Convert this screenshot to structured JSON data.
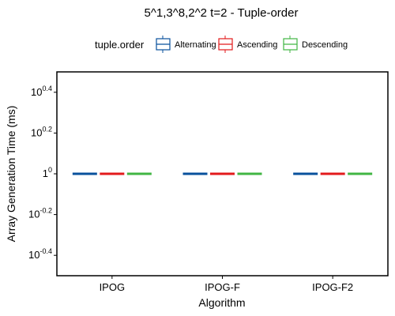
{
  "chart_data": {
    "type": "box",
    "title": "5^1,3^8,2^2 t=2 - Tuple-order",
    "xlabel": "Algorithm",
    "ylabel": "Array Generation Time (ms)",
    "y_scale": "log10",
    "ylim_log10": [
      -0.5,
      0.5
    ],
    "y_ticks": [
      {
        "base": "10",
        "exp": "-0.4",
        "value": -0.4
      },
      {
        "base": "10",
        "exp": "-0.2",
        "value": -0.2
      },
      {
        "base": "1",
        "exp": "0",
        "value": 0
      },
      {
        "base": "10",
        "exp": "0.2",
        "value": 0.2
      },
      {
        "base": "10",
        "exp": "0.4",
        "value": 0.4
      }
    ],
    "categories": [
      "IPOG",
      "IPOG-F",
      "IPOG-F2"
    ],
    "legend": {
      "title": "tuple.order",
      "position": "top"
    },
    "grid": false,
    "series": [
      {
        "name": "Alternating",
        "color": "#08519c",
        "values": [
          1,
          1,
          1
        ]
      },
      {
        "name": "Ascending",
        "color": "#e31a1c",
        "values": [
          1,
          1,
          1
        ]
      },
      {
        "name": "Descending",
        "color": "#41b643",
        "values": [
          1,
          1,
          1
        ]
      }
    ]
  }
}
